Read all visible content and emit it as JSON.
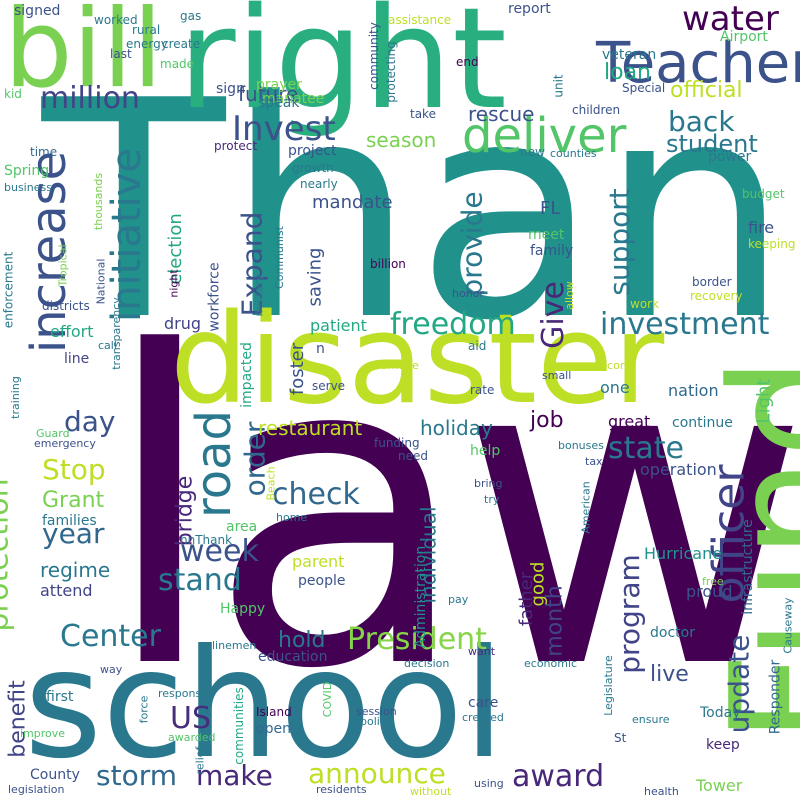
{
  "words": [
    {
      "text": "law",
      "color": "#440154"
    },
    {
      "text": "Thank",
      "color": "#21918c"
    },
    {
      "text": "disaster",
      "color": "#bddf26"
    },
    {
      "text": "right",
      "color": "#29af7f"
    },
    {
      "text": "school",
      "color": "#2a788e"
    },
    {
      "text": "bill",
      "color": "#7ad151"
    },
    {
      "text": "Fund",
      "color": "#7ad151"
    },
    {
      "text": "Teacher",
      "color": "#3b528b"
    },
    {
      "text": "deliver",
      "color": "#52c569"
    },
    {
      "text": "increase",
      "color": "#3b528b"
    },
    {
      "text": "road",
      "color": "#2a788e"
    },
    {
      "text": "officer",
      "color": "#414487"
    },
    {
      "text": "initiative",
      "color": "#2a788e"
    },
    {
      "text": "President",
      "color": "#86d549"
    },
    {
      "text": "million",
      "color": "#414487"
    },
    {
      "text": "Invest",
      "color": "#3b528b"
    },
    {
      "text": "water",
      "color": "#440154"
    },
    {
      "text": "investment",
      "color": "#2a788e"
    },
    {
      "text": "freedom",
      "color": "#22a884"
    },
    {
      "text": "check",
      "color": "#31688e"
    },
    {
      "text": "Center",
      "color": "#2a788e"
    },
    {
      "text": "protection",
      "color": "#7ad151"
    },
    {
      "text": "award",
      "color": "#482878"
    },
    {
      "text": "announce",
      "color": "#bddf26"
    },
    {
      "text": "storm",
      "color": "#31688e"
    },
    {
      "text": "make",
      "color": "#482878"
    },
    {
      "text": "stand",
      "color": "#2a788e"
    },
    {
      "text": "week",
      "color": "#3b528b"
    },
    {
      "text": "US",
      "color": "#472d7b"
    },
    {
      "text": "Stop",
      "color": "#bddf26"
    },
    {
      "text": "Give",
      "color": "#482878"
    },
    {
      "text": "Expand",
      "color": "#3b528b"
    },
    {
      "text": "provide",
      "color": "#2a788e"
    },
    {
      "text": "state",
      "color": "#2a788e"
    },
    {
      "text": "support",
      "color": "#2a788e"
    },
    {
      "text": "update",
      "color": "#3b528b"
    },
    {
      "text": "program",
      "color": "#414487"
    },
    {
      "text": "order",
      "color": "#31688e"
    },
    {
      "text": "year",
      "color": "#31688e"
    },
    {
      "text": "day",
      "color": "#3b528b"
    },
    {
      "text": "back",
      "color": "#2a788e"
    },
    {
      "text": "student",
      "color": "#2a788e"
    },
    {
      "text": "loan",
      "color": "#22a884"
    },
    {
      "text": "official",
      "color": "#bddf26"
    },
    {
      "text": "rescue",
      "color": "#3b528b"
    },
    {
      "text": "future",
      "color": "#3b528b"
    },
    {
      "text": "Grant",
      "color": "#7ad151"
    },
    {
      "text": "restaurant",
      "color": "#bddf26"
    },
    {
      "text": "holiday",
      "color": "#2a788e"
    },
    {
      "text": "job",
      "color": "#440154"
    },
    {
      "text": "regime",
      "color": "#2a788e"
    },
    {
      "text": "bridge",
      "color": "#482878"
    },
    {
      "text": "month",
      "color": "#414487"
    },
    {
      "text": "individual",
      "color": "#2a788e"
    },
    {
      "text": "Administration",
      "color": "#21918c"
    },
    {
      "text": "father",
      "color": "#482878"
    },
    {
      "text": "live",
      "color": "#3b528b"
    },
    {
      "text": "hold",
      "color": "#2a788e"
    },
    {
      "text": "benefit",
      "color": "#414487"
    },
    {
      "text": "season",
      "color": "#7ad151"
    },
    {
      "text": "election",
      "color": "#22a884"
    },
    {
      "text": "mandate",
      "color": "#3b528b"
    },
    {
      "text": "saving",
      "color": "#3b528b"
    },
    {
      "text": "foster",
      "color": "#3b528b"
    },
    {
      "text": "patient",
      "color": "#22a884"
    },
    {
      "text": "effort",
      "color": "#22a884"
    },
    {
      "text": "drug",
      "color": "#414487"
    },
    {
      "text": "fire",
      "color": "#3b528b"
    },
    {
      "text": "meet",
      "color": "#52c569"
    },
    {
      "text": "family",
      "color": "#3b528b"
    },
    {
      "text": "FL",
      "color": "#3b528b"
    },
    {
      "text": "good",
      "color": "#bddf26"
    },
    {
      "text": "great",
      "color": "#440154"
    },
    {
      "text": "continue",
      "color": "#2a788e"
    },
    {
      "text": "operation",
      "color": "#3b528b"
    },
    {
      "text": "nation",
      "color": "#31688e"
    },
    {
      "text": "one",
      "color": "#2a788e"
    },
    {
      "text": "Light",
      "color": "#52c569"
    },
    {
      "text": "infrastructure",
      "color": "#31688e"
    },
    {
      "text": "Responder",
      "color": "#31688e"
    },
    {
      "text": "Hurricane",
      "color": "#21918c"
    },
    {
      "text": "proud",
      "color": "#3b528b"
    },
    {
      "text": "doctor",
      "color": "#2a788e"
    },
    {
      "text": "Today",
      "color": "#2a788e"
    },
    {
      "text": "keep",
      "color": "#482878"
    },
    {
      "text": "Tower",
      "color": "#7ad151"
    },
    {
      "text": "care",
      "color": "#3b528b"
    },
    {
      "text": "education",
      "color": "#3b528b"
    },
    {
      "text": "parent",
      "color": "#bddf26"
    },
    {
      "text": "people",
      "color": "#3b528b"
    },
    {
      "text": "attend",
      "color": "#414487"
    },
    {
      "text": "County",
      "color": "#3b528b"
    },
    {
      "text": "first",
      "color": "#2a788e"
    },
    {
      "text": "open",
      "color": "#31688e"
    },
    {
      "text": "communities",
      "color": "#22a884"
    },
    {
      "text": "Happy",
      "color": "#52c569"
    },
    {
      "text": "prayer",
      "color": "#7ad151"
    },
    {
      "text": "manatee",
      "color": "#7ad151"
    },
    {
      "text": "speak",
      "color": "#2a788e"
    },
    {
      "text": "project",
      "color": "#3b528b"
    },
    {
      "text": "workforce",
      "color": "#3b528b"
    },
    {
      "text": "impacted",
      "color": "#22a884"
    },
    {
      "text": "sign",
      "color": "#3b528b"
    },
    {
      "text": "kid",
      "color": "#52c569"
    },
    {
      "text": "Spring",
      "color": "#52c569"
    },
    {
      "text": "time",
      "color": "#31688e"
    },
    {
      "text": "families",
      "color": "#2a788e"
    },
    {
      "text": "line",
      "color": "#414487"
    },
    {
      "text": "enforcement",
      "color": "#2a788e"
    },
    {
      "text": "districts",
      "color": "#3b528b"
    },
    {
      "text": "report",
      "color": "#3b528b"
    },
    {
      "text": "veteran",
      "color": "#2a788e"
    },
    {
      "text": "Airport",
      "color": "#52c569"
    },
    {
      "text": "unit",
      "color": "#2a788e"
    },
    {
      "text": "children",
      "color": "#3b528b"
    },
    {
      "text": "community",
      "color": "#3b528b"
    },
    {
      "text": "power",
      "color": "#2a788e"
    },
    {
      "text": "protect",
      "color": "#482878"
    },
    {
      "text": "new",
      "color": "#2a788e"
    },
    {
      "text": "signed",
      "color": "#3b528b"
    },
    {
      "text": "worked",
      "color": "#2a788e"
    },
    {
      "text": "gas",
      "color": "#2a788e"
    },
    {
      "text": "rural",
      "color": "#2a788e"
    },
    {
      "text": "energy",
      "color": "#2a788e"
    },
    {
      "text": "create",
      "color": "#2a788e"
    },
    {
      "text": "made",
      "color": "#52c569"
    },
    {
      "text": "last",
      "color": "#3b528b"
    },
    {
      "text": "assistance",
      "color": "#bddf26"
    },
    {
      "text": "end",
      "color": "#440154"
    },
    {
      "text": "protecting",
      "color": "#2a788e"
    },
    {
      "text": "take",
      "color": "#3b528b"
    },
    {
      "text": "Special",
      "color": "#3b528b"
    },
    {
      "text": "counties",
      "color": "#2a788e"
    },
    {
      "text": "budget",
      "color": "#52c569"
    },
    {
      "text": "keeping",
      "color": "#bddf26"
    },
    {
      "text": "growth",
      "color": "#2a788e"
    },
    {
      "text": "nearly",
      "color": "#2a788e"
    },
    {
      "text": "business",
      "color": "#2a788e"
    },
    {
      "text": "thousands",
      "color": "#7ad151"
    },
    {
      "text": "Tropical",
      "color": "#7ad151"
    },
    {
      "text": "National",
      "color": "#3b528b"
    },
    {
      "text": "night",
      "color": "#440154"
    },
    {
      "text": "military",
      "color": "#2a788e"
    },
    {
      "text": "Communist",
      "color": "#2a788e"
    },
    {
      "text": "billion",
      "color": "#440154"
    },
    {
      "text": "border",
      "color": "#3b528b"
    },
    {
      "text": "recovery",
      "color": "#bddf26"
    },
    {
      "text": "honor",
      "color": "#3b528b"
    },
    {
      "text": "allow",
      "color": "#bddf26"
    },
    {
      "text": "work",
      "color": "#bddf26"
    },
    {
      "text": "transparency",
      "color": "#2a788e"
    },
    {
      "text": "call",
      "color": "#2a788e"
    },
    {
      "text": "aid",
      "color": "#2a788e"
    },
    {
      "text": "n",
      "color": "#3b528b"
    },
    {
      "text": "training",
      "color": "#2a788e"
    },
    {
      "text": "damage",
      "color": "#bddf26"
    },
    {
      "text": "record",
      "color": "#bddf26"
    },
    {
      "text": "small",
      "color": "#3b528b"
    },
    {
      "text": "serve",
      "color": "#3b528b"
    },
    {
      "text": "rate",
      "color": "#3b528b"
    },
    {
      "text": "Guard",
      "color": "#52c569"
    },
    {
      "text": "emergency",
      "color": "#3b528b"
    },
    {
      "text": "funding",
      "color": "#3b528b"
    },
    {
      "text": "bonuses",
      "color": "#2a788e"
    },
    {
      "text": "tax",
      "color": "#3b528b"
    },
    {
      "text": "help",
      "color": "#52c569"
    },
    {
      "text": "need",
      "color": "#3b528b"
    },
    {
      "text": "bring",
      "color": "#3b528b"
    },
    {
      "text": "try",
      "color": "#2a788e"
    },
    {
      "text": "Beach",
      "color": "#bddf26"
    },
    {
      "text": "home",
      "color": "#2a788e"
    },
    {
      "text": "area",
      "color": "#52c569"
    },
    {
      "text": "nnThank",
      "color": "#2a788e"
    },
    {
      "text": "American",
      "color": "#2a788e"
    },
    {
      "text": "free",
      "color": "#7ad151"
    },
    {
      "text": "Causeway",
      "color": "#2a788e"
    },
    {
      "text": "pay",
      "color": "#2a788e"
    },
    {
      "text": "linemen",
      "color": "#2a788e"
    },
    {
      "text": "want",
      "color": "#482878"
    },
    {
      "text": "decision",
      "color": "#2a788e"
    },
    {
      "text": "economic",
      "color": "#2a788e"
    },
    {
      "text": "Legislature",
      "color": "#2a788e"
    },
    {
      "text": "way",
      "color": "#3b528b"
    },
    {
      "text": "response",
      "color": "#2a788e"
    },
    {
      "text": "COVID",
      "color": "#52c569"
    },
    {
      "text": "force",
      "color": "#2a788e"
    },
    {
      "text": "improve",
      "color": "#52c569"
    },
    {
      "text": "relief",
      "color": "#2a788e"
    },
    {
      "text": "awarded",
      "color": "#52c569"
    },
    {
      "text": "Island",
      "color": "#440154"
    },
    {
      "text": "session",
      "color": "#3b528b"
    },
    {
      "text": "police",
      "color": "#2a788e"
    },
    {
      "text": "created",
      "color": "#2a788e"
    },
    {
      "text": "ensure",
      "color": "#2a788e"
    },
    {
      "text": "St",
      "color": "#3b528b"
    },
    {
      "text": "legislation",
      "color": "#3b528b"
    },
    {
      "text": "using",
      "color": "#3b528b"
    },
    {
      "text": "residents",
      "color": "#3b528b"
    },
    {
      "text": "without",
      "color": "#bddf26"
    },
    {
      "text": "health",
      "color": "#3b528b"
    }
  ]
}
